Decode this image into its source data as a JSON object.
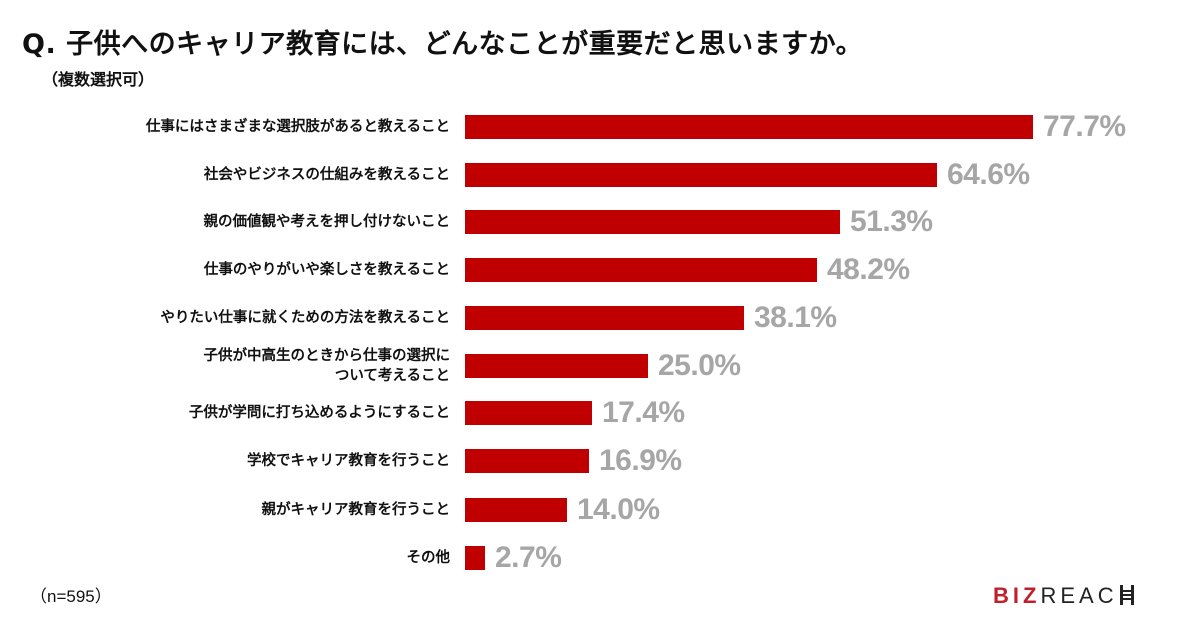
{
  "header": {
    "title": "Q. 子供へのキャリア教育には、どんなことが重要だと思いますか。",
    "subtitle": "（複数選択可）"
  },
  "footer": {
    "sample_size": "（n=595）",
    "logo_red": "BIZ",
    "logo_dark": "REAC"
  },
  "colors": {
    "bar": "#c00000",
    "value_label": "#a6a6a6",
    "logo_red": "#c0202c"
  },
  "rows": [
    {
      "label": "仕事にはさまざまな選択肢があると教えること",
      "value_label": "77.7%"
    },
    {
      "label": "社会やビジネスの仕組みを教えること",
      "value_label": "64.6%"
    },
    {
      "label": "親の価値観や考えを押し付けないこと",
      "value_label": "51.3%"
    },
    {
      "label": "仕事のやりがいや楽しさを教えること",
      "value_label": "48.2%"
    },
    {
      "label": "やりたい仕事に就くための方法を教えること",
      "value_label": "38.1%"
    },
    {
      "label": "子供が中高生のときから仕事の選択に\nついて考えること",
      "value_label": "25.0%"
    },
    {
      "label": "子供が学問に打ち込めるようにすること",
      "value_label": "17.4%"
    },
    {
      "label": "学校でキャリア教育を行うこと",
      "value_label": "16.9%"
    },
    {
      "label": "親がキャリア教育を行うこと",
      "value_label": "14.0%"
    },
    {
      "label": "その他",
      "value_label": "2.7%"
    }
  ],
  "chart_data": {
    "type": "bar",
    "orientation": "horizontal",
    "title": "Q. 子供へのキャリア教育には、どんなことが重要だと思いますか。",
    "subtitle": "（複数選択可）",
    "categories": [
      "仕事にはさまざまな選択肢があると教えること",
      "社会やビジネスの仕組みを教えること",
      "親の価値観や考えを押し付けないこと",
      "仕事のやりがいや楽しさを教えること",
      "やりたい仕事に就くための方法を教えること",
      "子供が中高生のときから仕事の選択について考えること",
      "子供が学問に打ち込めるようにすること",
      "学校でキャリア教育を行うこと",
      "親がキャリア教育を行うこと",
      "その他"
    ],
    "values": [
      77.7,
      64.6,
      51.3,
      48.2,
      38.1,
      25.0,
      17.4,
      16.9,
      14.0,
      2.7
    ],
    "unit": "%",
    "xlabel": "",
    "ylabel": "",
    "xlim": [
      0,
      100
    ],
    "grid": false,
    "legend": null,
    "data_labels": true,
    "annotations": [
      "（n=595）"
    ]
  }
}
